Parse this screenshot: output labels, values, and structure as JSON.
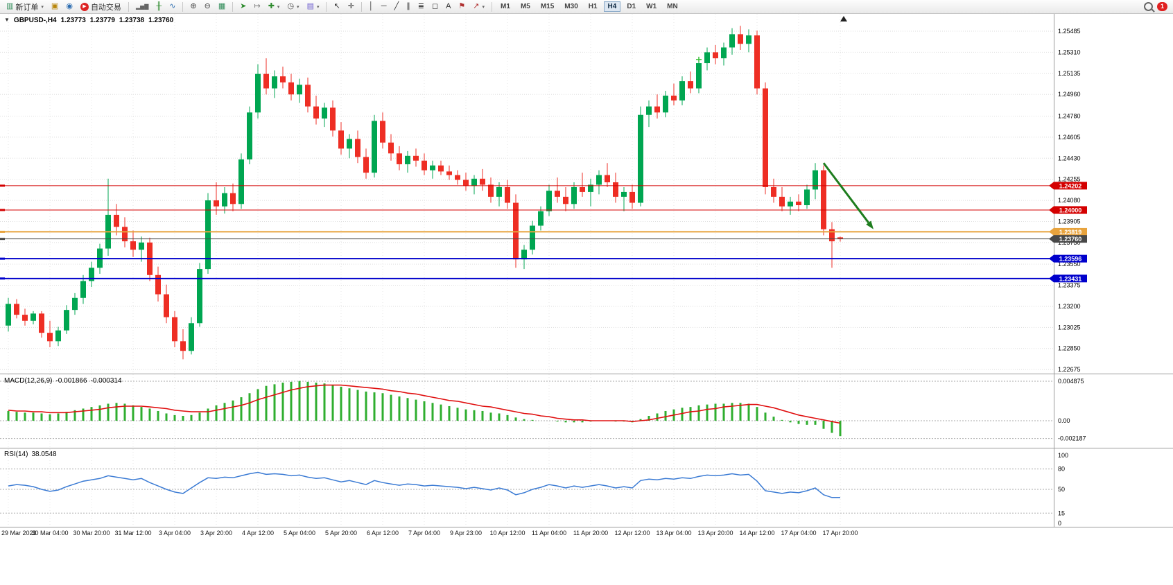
{
  "toolbar": {
    "items": [
      {
        "name": "new-order-button",
        "icon": "new-order-icon",
        "label": "新订单",
        "caret": true
      },
      {
        "name": "charts-window-button",
        "icon": "charts-icon"
      },
      {
        "name": "community-button",
        "icon": "community-icon"
      },
      {
        "name": "autotrading-button",
        "icon": "autotrading-icon",
        "label": "自动交易"
      },
      {
        "sep": true
      },
      {
        "name": "bar-chart-button",
        "icon": "bar-chart-icon"
      },
      {
        "name": "candlestick-chart-button",
        "icon": "candlestick-icon"
      },
      {
        "name": "line-chart-button",
        "icon": "line-chart-icon"
      },
      {
        "sep": true
      },
      {
        "name": "zoom-in-button",
        "icon": "zoom-in-icon"
      },
      {
        "name": "zoom-out-button",
        "icon": "zoom-out-icon"
      },
      {
        "name": "tile-windows-button",
        "icon": "tile-windows-icon"
      },
      {
        "sep": true
      },
      {
        "name": "auto-scroll-button",
        "icon": "auto-scroll-icon"
      },
      {
        "name": "chart-shift-button",
        "icon": "chart-shift-icon"
      },
      {
        "name": "indicators-button",
        "icon": "indicators-icon",
        "caret": true
      },
      {
        "name": "periods-button",
        "icon": "periods-icon",
        "caret": true
      },
      {
        "name": "templates-button",
        "icon": "templates-icon",
        "caret": true
      },
      {
        "sep": true
      },
      {
        "name": "cursor-button",
        "icon": "cursor-icon"
      },
      {
        "name": "crosshair-button",
        "icon": "crosshair-icon"
      },
      {
        "sep": true
      },
      {
        "name": "vertical-line-button",
        "icon": "vertical-line-icon"
      },
      {
        "name": "horizontal-line-button",
        "icon": "horizontal-line-icon"
      },
      {
        "name": "trendline-button",
        "icon": "trendline-icon"
      },
      {
        "name": "channel-button",
        "icon": "channel-icon"
      },
      {
        "name": "fibonacci-button",
        "icon": "fibonacci-icon"
      },
      {
        "name": "shapes-button",
        "icon": "shapes-icon"
      },
      {
        "name": "text-button",
        "icon": "text-icon"
      },
      {
        "name": "text-label-button",
        "icon": "text-label-icon"
      },
      {
        "name": "arrows-button",
        "icon": "arrows-icon",
        "caret": true
      },
      {
        "sep": true
      }
    ],
    "timeframes": {
      "options": [
        "M1",
        "M5",
        "M15",
        "M30",
        "H1",
        "H4",
        "D1",
        "W1",
        "MN"
      ],
      "active": "H4"
    },
    "notification_count": "1"
  },
  "chart_header": {
    "collapse_icon": "▼",
    "symbol": "GBPUSD-,H4",
    "open": "1.23773",
    "high": "1.23779",
    "low": "1.23738",
    "close": "1.23760"
  },
  "chart_data": {
    "type": "candlestick",
    "symbol": "GBPUSD",
    "timeframe": "H4",
    "price_axis_labels": [
      "1.25485",
      "1.25310",
      "1.25135",
      "1.24960",
      "1.24780",
      "1.24605",
      "1.24430",
      "1.24255",
      "1.24080",
      "1.23905",
      "1.23730",
      "1.23550",
      "1.23375",
      "1.23200",
      "1.23025",
      "1.22850",
      "1.22675"
    ],
    "time_axis_labels": [
      "29 Mar 2023",
      "30 Mar 04:00",
      "30 Mar 20:00",
      "31 Mar 12:00",
      "3 Apr 04:00",
      "3 Apr 20:00",
      "4 Apr 12:00",
      "5 Apr 04:00",
      "5 Apr 20:00",
      "6 Apr 12:00",
      "7 Apr 04:00",
      "9 Apr 23:00",
      "10 Apr 12:00",
      "11 Apr 04:00",
      "11 Apr 20:00",
      "12 Apr 12:00",
      "13 Apr 04:00",
      "13 Apr 20:00",
      "14 Apr 12:00",
      "17 Apr 04:00",
      "17 Apr 20:00"
    ],
    "levels": [
      {
        "value": "1.24202",
        "price": 1.24202,
        "color": "#d40000",
        "width": 1
      },
      {
        "value": "1.24000",
        "price": 1.24,
        "color": "#d40000",
        "width": 1
      },
      {
        "value": "1.23819",
        "price": 1.23819,
        "color": "#e8a33d",
        "width": 2
      },
      {
        "value": "1.23760",
        "price": 1.2376,
        "color": "#484848",
        "width": 1
      },
      {
        "value": "1.23596",
        "price": 1.23596,
        "color": "#0000cc",
        "width": 2
      },
      {
        "value": "1.23431",
        "price": 1.23431,
        "color": "#0000cc",
        "width": 2
      }
    ],
    "candles": [
      [
        1.2304,
        1.2327,
        1.2299,
        1.2322
      ],
      [
        1.2322,
        1.2326,
        1.231,
        1.2313
      ],
      [
        1.2313,
        1.2318,
        1.2304,
        1.2308
      ],
      [
        1.2308,
        1.2316,
        1.2305,
        1.2314
      ],
      [
        1.2314,
        1.2316,
        1.2294,
        1.2298
      ],
      [
        1.2298,
        1.2308,
        1.2286,
        1.2291
      ],
      [
        1.2291,
        1.2303,
        1.2287,
        1.23
      ],
      [
        1.23,
        1.2321,
        1.2297,
        1.2317
      ],
      [
        1.2317,
        1.2331,
        1.2313,
        1.2327
      ],
      [
        1.2327,
        1.2346,
        1.2322,
        1.2341
      ],
      [
        1.2341,
        1.2357,
        1.2336,
        1.2352
      ],
      [
        1.2352,
        1.2372,
        1.2347,
        1.2368
      ],
      [
        1.2368,
        1.2426,
        1.2362,
        1.2396
      ],
      [
        1.2396,
        1.2405,
        1.2379,
        1.2386
      ],
      [
        1.2386,
        1.2394,
        1.2369,
        1.2374
      ],
      [
        1.2374,
        1.2383,
        1.2361,
        1.2367
      ],
      [
        1.2367,
        1.2378,
        1.2357,
        1.2373
      ],
      [
        1.2373,
        1.2377,
        1.2341,
        1.2346
      ],
      [
        1.2346,
        1.2353,
        1.2324,
        1.233
      ],
      [
        1.233,
        1.2338,
        1.2306,
        1.2311
      ],
      [
        1.2311,
        1.2316,
        1.2286,
        1.2291
      ],
      [
        1.2291,
        1.2301,
        1.2276,
        1.2283
      ],
      [
        1.2283,
        1.2311,
        1.228,
        1.2306
      ],
      [
        1.2306,
        1.2356,
        1.2303,
        1.2351
      ],
      [
        1.2351,
        1.2414,
        1.2347,
        1.2408
      ],
      [
        1.2408,
        1.2423,
        1.2396,
        1.2403
      ],
      [
        1.2403,
        1.2419,
        1.2397,
        1.2414
      ],
      [
        1.2414,
        1.2422,
        1.2399,
        1.2405
      ],
      [
        1.2405,
        1.2447,
        1.2401,
        1.2442
      ],
      [
        1.2442,
        1.2486,
        1.2438,
        1.2481
      ],
      [
        1.2481,
        1.2521,
        1.2476,
        1.2513
      ],
      [
        1.2513,
        1.2526,
        1.2496,
        1.2501
      ],
      [
        1.2501,
        1.2516,
        1.2493,
        1.2511
      ],
      [
        1.2511,
        1.2519,
        1.2501,
        1.2506
      ],
      [
        1.2506,
        1.2513,
        1.2491,
        1.2496
      ],
      [
        1.2496,
        1.2509,
        1.2489,
        1.2504
      ],
      [
        1.2504,
        1.251,
        1.2481,
        1.2486
      ],
      [
        1.2486,
        1.2495,
        1.2471,
        1.2476
      ],
      [
        1.2476,
        1.2489,
        1.2469,
        1.2485
      ],
      [
        1.2485,
        1.2491,
        1.2461,
        1.2466
      ],
      [
        1.2466,
        1.2473,
        1.2446,
        1.2451
      ],
      [
        1.2451,
        1.2463,
        1.2443,
        1.2459
      ],
      [
        1.2459,
        1.2466,
        1.2439,
        1.2444
      ],
      [
        1.2444,
        1.2451,
        1.2426,
        1.2431
      ],
      [
        1.2431,
        1.2479,
        1.2427,
        1.2474
      ],
      [
        1.2474,
        1.2481,
        1.2451,
        1.2456
      ],
      [
        1.2456,
        1.2463,
        1.2441,
        1.2447
      ],
      [
        1.2447,
        1.2453,
        1.2433,
        1.2438
      ],
      [
        1.2438,
        1.2449,
        1.2431,
        1.2445
      ],
      [
        1.2445,
        1.2451,
        1.2436,
        1.2441
      ],
      [
        1.2441,
        1.2447,
        1.2429,
        1.2433
      ],
      [
        1.2433,
        1.2441,
        1.2426,
        1.2437
      ],
      [
        1.2437,
        1.2441,
        1.2429,
        1.2432
      ],
      [
        1.2432,
        1.2437,
        1.2425,
        1.2429
      ],
      [
        1.2429,
        1.2433,
        1.2421,
        1.2425
      ],
      [
        1.2425,
        1.2431,
        1.2416,
        1.242
      ],
      [
        1.242,
        1.2429,
        1.2413,
        1.2426
      ],
      [
        1.2426,
        1.2434,
        1.2416,
        1.2421
      ],
      [
        1.2421,
        1.2427,
        1.2406,
        1.2411
      ],
      [
        1.2411,
        1.2423,
        1.2403,
        1.2419
      ],
      [
        1.2419,
        1.2425,
        1.2401,
        1.2406
      ],
      [
        1.2406,
        1.2413,
        1.2352,
        1.2359
      ],
      [
        1.2359,
        1.2371,
        1.2351,
        1.2367
      ],
      [
        1.2367,
        1.2391,
        1.2363,
        1.2387
      ],
      [
        1.2387,
        1.2403,
        1.2383,
        1.2399
      ],
      [
        1.2399,
        1.2421,
        1.2395,
        1.2416
      ],
      [
        1.2416,
        1.2427,
        1.2406,
        1.2411
      ],
      [
        1.2411,
        1.2419,
        1.2399,
        1.2405
      ],
      [
        1.2405,
        1.2423,
        1.2401,
        1.2419
      ],
      [
        1.2419,
        1.2431,
        1.2411,
        1.2415
      ],
      [
        1.2415,
        1.2426,
        1.2403,
        1.2421
      ],
      [
        1.2421,
        1.2433,
        1.2413,
        1.2429
      ],
      [
        1.2429,
        1.2439,
        1.2419,
        1.2423
      ],
      [
        1.2423,
        1.2431,
        1.2406,
        1.2411
      ],
      [
        1.2411,
        1.2419,
        1.2399,
        1.2415
      ],
      [
        1.2415,
        1.2421,
        1.2401,
        1.2406
      ],
      [
        1.2406,
        1.2486,
        1.2403,
        1.2479
      ],
      [
        1.2479,
        1.2491,
        1.2469,
        1.2486
      ],
      [
        1.2486,
        1.2496,
        1.2476,
        1.2481
      ],
      [
        1.2481,
        1.2499,
        1.2477,
        1.2495
      ],
      [
        1.2495,
        1.2505,
        1.2487,
        1.2491
      ],
      [
        1.2491,
        1.2511,
        1.2487,
        1.2507
      ],
      [
        1.2507,
        1.2515,
        1.2497,
        1.2501
      ],
      [
        1.2501,
        1.2526,
        1.2497,
        1.2522
      ],
      [
        1.2522,
        1.2535,
        1.2516,
        1.2531
      ],
      [
        1.2531,
        1.2537,
        1.2521,
        1.2526
      ],
      [
        1.2526,
        1.2539,
        1.252,
        1.2535
      ],
      [
        1.2535,
        1.2551,
        1.2529,
        1.2546
      ],
      [
        1.2546,
        1.2553,
        1.2533,
        1.2538
      ],
      [
        1.2538,
        1.255,
        1.2531,
        1.2545
      ],
      [
        1.2545,
        1.2549,
        1.2496,
        1.2501
      ],
      [
        1.2501,
        1.2506,
        1.2413,
        1.2419
      ],
      [
        1.2419,
        1.2426,
        1.2406,
        1.2411
      ],
      [
        1.2411,
        1.2419,
        1.2399,
        1.2403
      ],
      [
        1.2403,
        1.2411,
        1.2396,
        1.2407
      ],
      [
        1.2407,
        1.2413,
        1.2399,
        1.2404
      ],
      [
        1.2404,
        1.2421,
        1.2401,
        1.2417
      ],
      [
        1.2417,
        1.2439,
        1.2409,
        1.2433
      ],
      [
        1.2433,
        1.2437,
        1.2379,
        1.2384
      ],
      [
        1.2384,
        1.239,
        1.2352,
        1.2374
      ],
      [
        1.23773,
        1.23779,
        1.23738,
        1.2376
      ]
    ],
    "annotations": {
      "arrow": {
        "from_index": 98,
        "from_price": 1.2439,
        "to_index": 104,
        "to_price": 1.2384,
        "color": "#1e7d1e"
      },
      "cross_marker": {
        "index": 83,
        "price": 1.2525,
        "color": "#39c139"
      }
    },
    "colors": {
      "up": "#00a651",
      "down": "#ee2e24",
      "grid": "#dedede",
      "macd_histogram": "#2fae2f",
      "macd_signal": "#e01010",
      "rsi_line": "#3b7bd4"
    }
  },
  "macd": {
    "label": "MACD(12,26,9)",
    "main_value": "-0.001866",
    "signal_value": "-0.000314",
    "scale_labels": [
      "0.004875",
      "0.00",
      "-0.002187"
    ],
    "scale_values": [
      0.004875,
      0,
      -0.002187
    ],
    "histogram": [
      0.0012,
      0.0011,
      0.001,
      0.001,
      0.0009,
      0.0008,
      0.0009,
      0.0011,
      0.0013,
      0.0015,
      0.0017,
      0.0019,
      0.0021,
      0.0022,
      0.0021,
      0.0019,
      0.0017,
      0.0015,
      0.0012,
      0.0009,
      0.0007,
      0.0006,
      0.0007,
      0.001,
      0.0015,
      0.0019,
      0.0022,
      0.0025,
      0.0029,
      0.0034,
      0.0039,
      0.0043,
      0.0045,
      0.0047,
      0.0048,
      0.0049,
      0.0048,
      0.0047,
      0.0046,
      0.0044,
      0.0042,
      0.004,
      0.0038,
      0.0036,
      0.0035,
      0.0034,
      0.0032,
      0.003,
      0.0028,
      0.0026,
      0.0024,
      0.0022,
      0.002,
      0.0018,
      0.0016,
      0.0014,
      0.0013,
      0.0012,
      0.001,
      0.0009,
      0.0007,
      0.0004,
      0.0002,
      0.0001,
      0,
      0,
      -0.0001,
      -0.0002,
      -0.0002,
      -0.0002,
      -0.0001,
      0,
      0,
      -0.0001,
      -0.0001,
      -0.0002,
      0.0002,
      0.0006,
      0.0009,
      0.0012,
      0.0014,
      0.0016,
      0.0017,
      0.0019,
      0.002,
      0.0021,
      0.0021,
      0.0022,
      0.0022,
      0.0021,
      0.0017,
      0.001,
      0.0005,
      0.0001,
      -0.0002,
      -0.0004,
      -0.0005,
      -0.0005,
      -0.001,
      -0.0015,
      -0.0019
    ],
    "signal": [
      0.0013,
      0.0012,
      0.0012,
      0.0011,
      0.0011,
      0.001,
      0.001,
      0.001,
      0.0011,
      0.0012,
      0.0013,
      0.0014,
      0.0016,
      0.0017,
      0.0018,
      0.0018,
      0.0018,
      0.0017,
      0.0016,
      0.0015,
      0.0013,
      0.0012,
      0.0011,
      0.0011,
      0.0011,
      0.0013,
      0.0015,
      0.0017,
      0.0019,
      0.0022,
      0.0026,
      0.0029,
      0.0032,
      0.0035,
      0.0038,
      0.004,
      0.0042,
      0.0043,
      0.0044,
      0.0044,
      0.0044,
      0.0043,
      0.0042,
      0.0041,
      0.004,
      0.0039,
      0.0037,
      0.0036,
      0.0034,
      0.0033,
      0.0031,
      0.0029,
      0.0027,
      0.0025,
      0.0024,
      0.0022,
      0.002,
      0.0018,
      0.0017,
      0.0015,
      0.0013,
      0.0011,
      0.0009,
      0.0008,
      0.0006,
      0.0005,
      0.0003,
      0.0002,
      0.0001,
      0.0001,
      0,
      0,
      0,
      0,
      0,
      -0.0001,
      0,
      0.0001,
      0.0003,
      0.0005,
      0.0007,
      0.0009,
      0.0011,
      0.0012,
      0.0014,
      0.0015,
      0.0017,
      0.0018,
      0.0019,
      0.002,
      0.002,
      0.0018,
      0.0016,
      0.0013,
      0.001,
      0.0007,
      0.0005,
      0.0003,
      0.0001,
      -0.0001,
      -0.0003
    ]
  },
  "rsi": {
    "label": "RSI(14)",
    "value": "38.0548",
    "scale_labels": [
      "100",
      "80",
      "50",
      "15",
      "0"
    ],
    "scale_values": [
      100,
      80,
      50,
      15,
      0
    ],
    "levels": [
      80,
      50,
      15
    ],
    "series": [
      55,
      57,
      56,
      54,
      50,
      47,
      49,
      54,
      58,
      62,
      64,
      66,
      70,
      68,
      66,
      64,
      66,
      60,
      55,
      50,
      46,
      44,
      52,
      60,
      67,
      66,
      68,
      67,
      70,
      73,
      75,
      72,
      73,
      72,
      70,
      71,
      68,
      66,
      67,
      64,
      61,
      63,
      60,
      57,
      63,
      60,
      58,
      56,
      58,
      57,
      55,
      56,
      55,
      54,
      53,
      51,
      53,
      51,
      49,
      52,
      49,
      42,
      45,
      50,
      53,
      57,
      55,
      52,
      55,
      53,
      55,
      57,
      55,
      52,
      54,
      52,
      63,
      65,
      64,
      66,
      65,
      67,
      66,
      69,
      71,
      70,
      71,
      73,
      71,
      72,
      62,
      48,
      46,
      44,
      46,
      45,
      48,
      52,
      42,
      38,
      38.05
    ]
  }
}
